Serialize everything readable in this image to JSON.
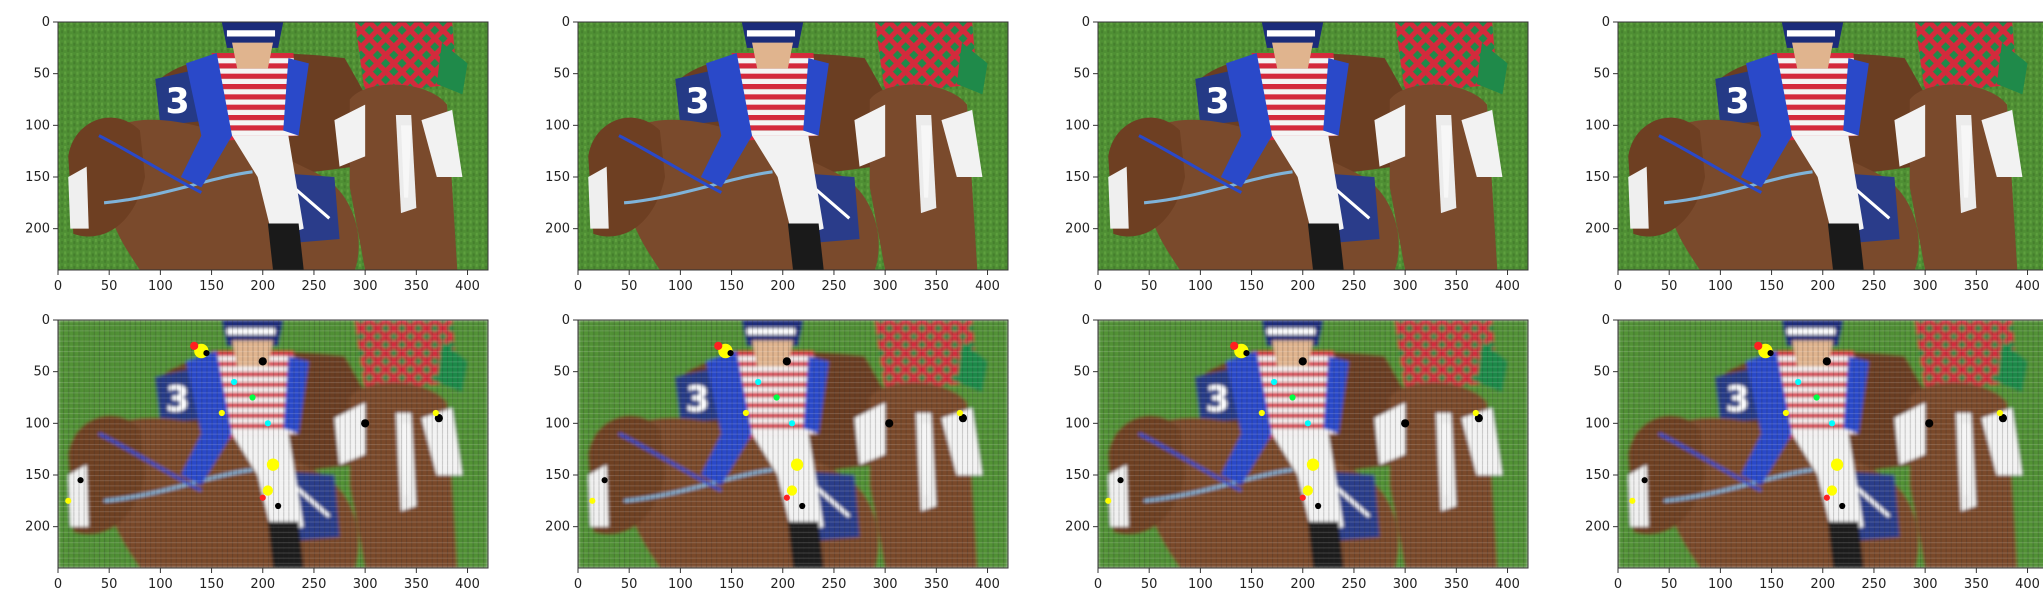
{
  "figure": {
    "description_type": "grid of image plots",
    "rows": 2,
    "cols": 4,
    "image_extent": {
      "x_max": 420,
      "y_max": 240
    },
    "x_ticks": [
      "0",
      "50",
      "100",
      "150",
      "200",
      "250",
      "300",
      "350",
      "400"
    ],
    "y_ticks": [
      "0",
      "50",
      "100",
      "150",
      "200"
    ],
    "colors": {
      "grass": "#4f8f34",
      "horse": "#7a4a2c",
      "jersey_blue": "#2a49c9",
      "jersey_red": "#d42a3c",
      "jersey_green": "#1f8a4a",
      "pants_white": "#f2f2f2",
      "saddle_blue": "#2a3c8a"
    }
  },
  "panels": [
    {
      "row": 0,
      "col": 0,
      "style": "original"
    },
    {
      "row": 0,
      "col": 1,
      "style": "original"
    },
    {
      "row": 0,
      "col": 2,
      "style": "original"
    },
    {
      "row": 0,
      "col": 3,
      "style": "original"
    },
    {
      "row": 1,
      "col": 0,
      "style": "reconstruction"
    },
    {
      "row": 1,
      "col": 1,
      "style": "reconstruction"
    },
    {
      "row": 1,
      "col": 2,
      "style": "reconstruction"
    },
    {
      "row": 1,
      "col": 3,
      "style": "reconstruction"
    }
  ]
}
